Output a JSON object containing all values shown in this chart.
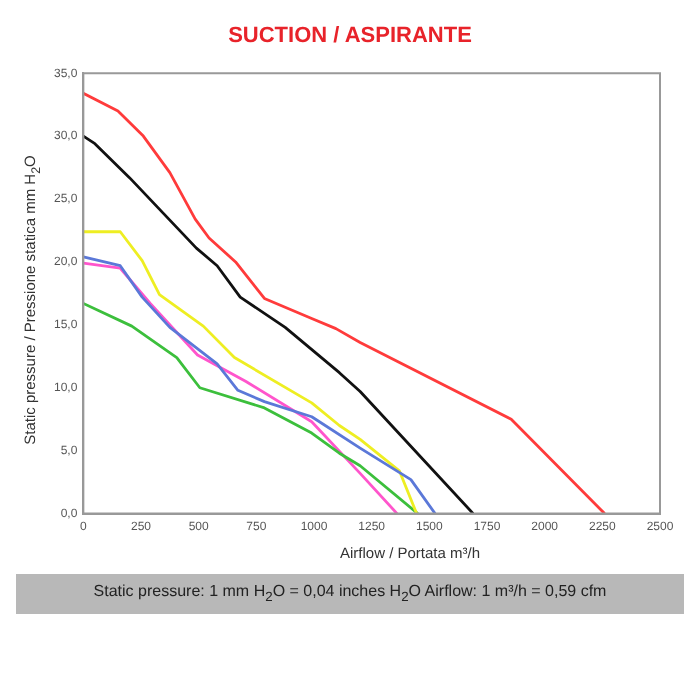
{
  "chart_data": {
    "type": "line",
    "title": "SUCTION / ASPIRANTE",
    "xlabel": "Airflow / Portata  m³/h",
    "ylabel": "Static pressure / Pressione statica  mm H$_{2}$O",
    "annotations": [
      "Static pressure: 1 mm H$_{2}$O = 0,04 inches H$_{2}$O     Airflow: 1 m³/h = 0,59 cfm"
    ],
    "xlim": [
      0,
      2500
    ],
    "xticks": [
      0,
      250,
      500,
      750,
      1000,
      1250,
      1500,
      1750,
      2000,
      2250,
      2500
    ],
    "ylim": [
      0,
      35
    ],
    "yticks": [
      {
        "value": 0,
        "label": "0,0"
      },
      {
        "value": 5,
        "label": "5,0"
      },
      {
        "value": 10,
        "label": "10,0"
      },
      {
        "value": 15,
        "label": "15,0"
      },
      {
        "value": 20,
        "label": "20,0"
      },
      {
        "value": 25,
        "label": "25,0"
      },
      {
        "value": 30,
        "label": "30,0"
      },
      {
        "value": 35,
        "label": "35,0"
      }
    ],
    "legend": false,
    "marker": "none",
    "series": [
      {
        "color": "#ff3b3b",
        "x": [
          0,
          150,
          260,
          375,
          485,
          545,
          660,
          785,
          990,
          1095,
          1200,
          1855,
          2260
        ],
        "values": [
          33.4,
          32.0,
          30.0,
          27.1,
          23.4,
          21.9,
          20.0,
          17.1,
          15.5,
          14.7,
          13.6,
          7.5,
          0
        ]
      },
      {
        "color": "#111111",
        "x": [
          0,
          50,
          200,
          345,
          490,
          580,
          680,
          875,
          1110,
          1200,
          1690
        ],
        "values": [
          30.0,
          29.4,
          26.7,
          23.9,
          21.1,
          19.7,
          17.2,
          14.8,
          11.2,
          9.7,
          0
        ]
      },
      {
        "color": "#5b78d8",
        "x": [
          0,
          160,
          255,
          375,
          580,
          670,
          785,
          990,
          1200,
          1420,
          1525
        ],
        "values": [
          20.4,
          19.7,
          17.2,
          14.8,
          11.9,
          9.8,
          8.9,
          7.7,
          5.2,
          2.7,
          0
        ]
      },
      {
        "color": "#eeee22",
        "x": [
          0,
          160,
          255,
          330,
          520,
          655,
          990,
          1110,
          1200,
          1370,
          1445
        ],
        "values": [
          22.4,
          22.4,
          20.1,
          17.4,
          14.9,
          12.4,
          8.8,
          7.0,
          5.9,
          3.4,
          0
        ]
      },
      {
        "color": "#3cbf3c",
        "x": [
          0,
          210,
          405,
          505,
          785,
          990,
          1110,
          1200,
          1450
        ],
        "values": [
          16.7,
          14.9,
          12.4,
          10.0,
          8.4,
          6.4,
          4.8,
          3.8,
          0
        ]
      },
      {
        "color": "#ff55cc",
        "x": [
          0,
          160,
          290,
          495,
          705,
          990,
          1200,
          1360
        ],
        "values": [
          19.9,
          19.5,
          16.7,
          12.6,
          10.5,
          7.3,
          3.2,
          0
        ]
      }
    ]
  }
}
